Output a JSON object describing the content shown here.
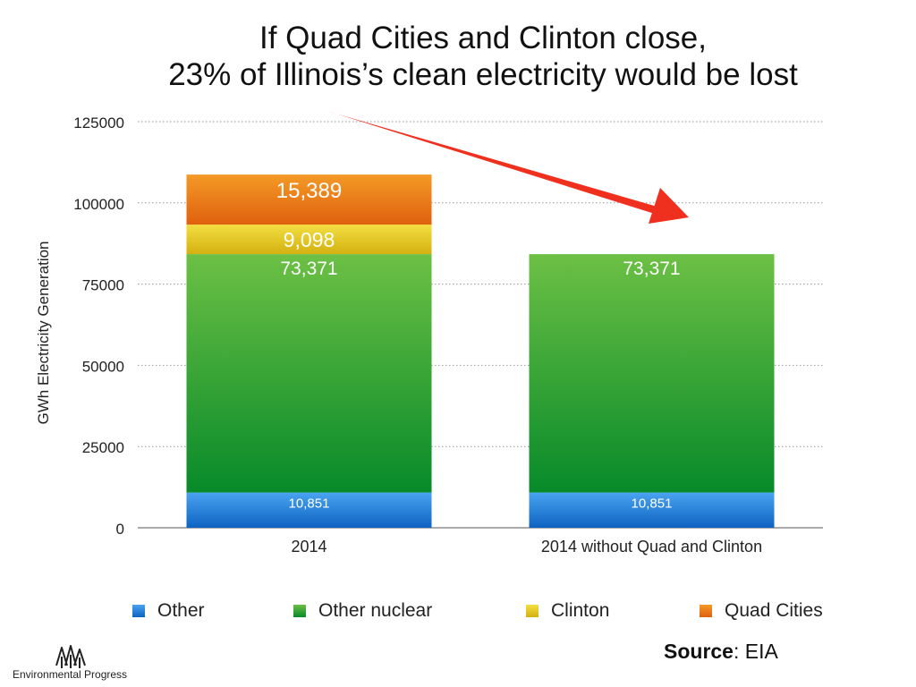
{
  "title_line1": "If Quad Cities and Clinton close,",
  "title_line2": "23% of Illinois’s clean electricity would be lost",
  "chart_data": {
    "type": "bar",
    "stacked": true,
    "categories": [
      "2014",
      "2014 without Quad and Clinton"
    ],
    "series": [
      {
        "name": "Other",
        "values": [
          10851,
          10851
        ],
        "labels": [
          "10,851",
          "10,851"
        ],
        "color": "#1c7ad8"
      },
      {
        "name": "Other nuclear",
        "values": [
          73371,
          73371
        ],
        "labels": [
          "73,371",
          "73,371"
        ],
        "color": "#3aa83a"
      },
      {
        "name": "Clinton",
        "values": [
          9098,
          0
        ],
        "labels": [
          "9,098",
          ""
        ],
        "color": "#e6c71e"
      },
      {
        "name": "Quad Cities",
        "values": [
          15389,
          0
        ],
        "labels": [
          "15,389",
          ""
        ],
        "color": "#e8761a"
      }
    ],
    "ylabel": "GWh Electricity Generation",
    "ylim": [
      0,
      125000
    ],
    "yticks": [
      0,
      25000,
      50000,
      75000,
      100000,
      125000
    ],
    "grid": true,
    "legend_position": "bottom"
  },
  "source_label": "Source",
  "source_value": ": EIA",
  "logo_text": "Environmental Progress",
  "colors": {
    "arrow": "#f0301e",
    "grid": "#999999",
    "axis": "#555555"
  }
}
